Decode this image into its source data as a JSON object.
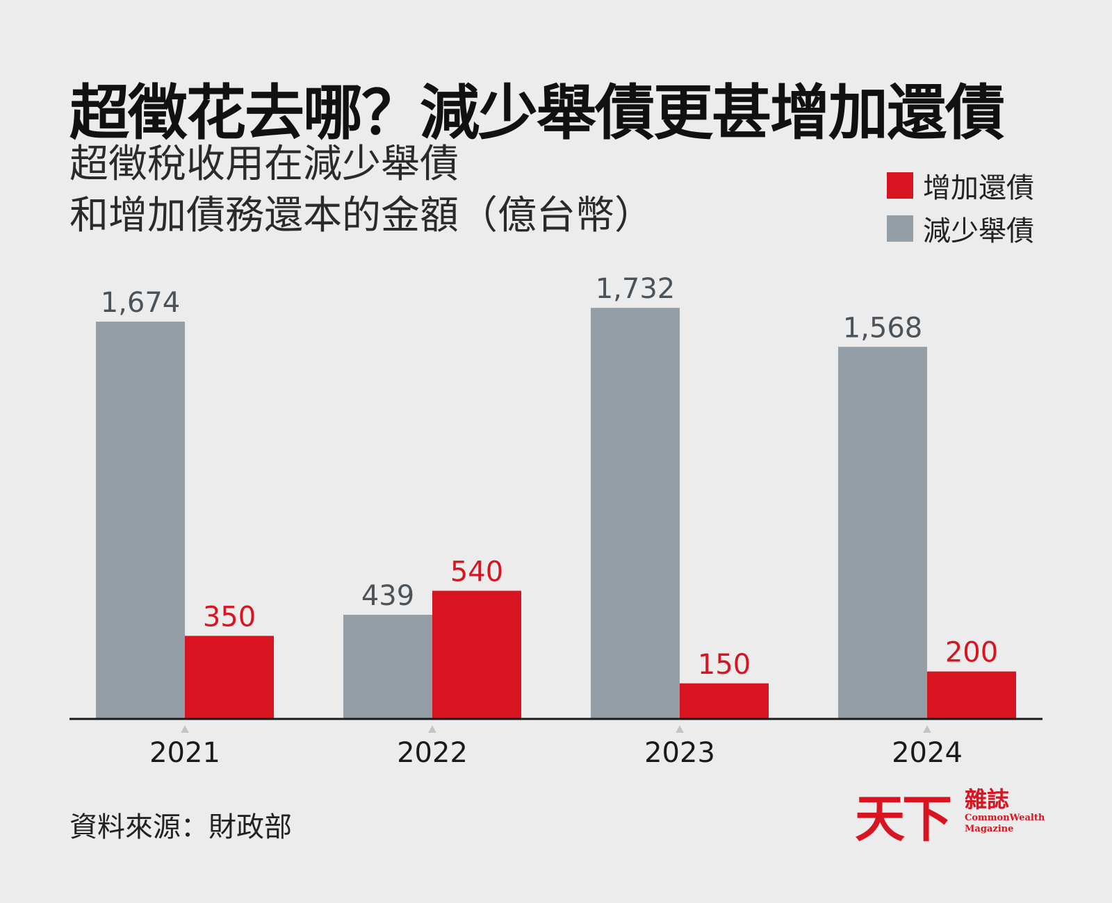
{
  "title": "超徵花去哪？減少舉債更甚增加還債",
  "subtitle": [
    "超徵稅收用在減少舉債",
    "和增加債務還本的金額（億台幣）"
  ],
  "legend": [
    {
      "label": "增加還債",
      "color": "#d7141f"
    },
    {
      "label": "減少舉債",
      "color": "#949ea7"
    }
  ],
  "source": "資料來源：財政部",
  "logo": {
    "mark": "天下",
    "cn": "雜誌",
    "en": [
      "CommonWealth",
      "Magazine"
    ]
  },
  "chart_data": {
    "type": "bar",
    "categories": [
      "2021",
      "2022",
      "2023",
      "2024"
    ],
    "series": [
      {
        "name": "減少舉債",
        "values": [
          1674,
          439,
          1732,
          1568
        ],
        "labels": [
          "1,674",
          "439",
          "1,732",
          "1,568"
        ],
        "color": "#949ea7",
        "label_color": "#4a525a"
      },
      {
        "name": "增加還債",
        "values": [
          350,
          540,
          150,
          200
        ],
        "labels": [
          "350",
          "540",
          "150",
          "200"
        ],
        "color": "#d7141f",
        "label_color": "#d7141f"
      }
    ],
    "ylim": [
      0,
      1800
    ],
    "grid": false,
    "legend_position": "top-right"
  }
}
